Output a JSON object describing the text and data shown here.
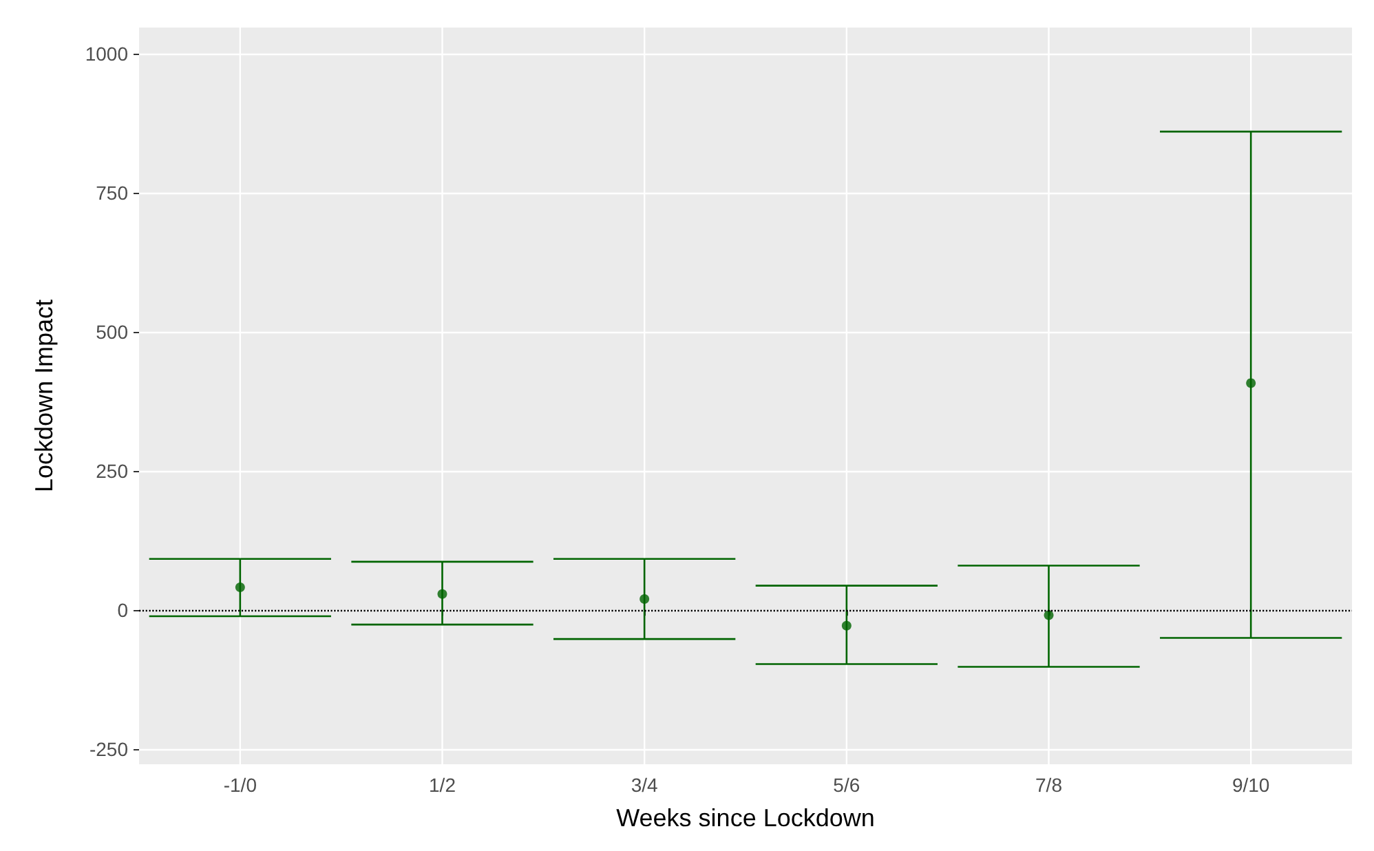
{
  "chart_data": {
    "type": "scatter",
    "xlabel": "Weeks since Lockdown",
    "ylabel": "Lockdown Impact",
    "categories": [
      "-1/0",
      "1/2",
      "3/4",
      "5/6",
      "7/8",
      "9/10"
    ],
    "values": [
      41,
      29,
      20,
      -28,
      -9,
      408
    ],
    "errors": [
      [
        -11,
        92
      ],
      [
        -26,
        87
      ],
      [
        -52,
        92
      ],
      [
        -97,
        44
      ],
      [
        -102,
        80
      ],
      [
        -50,
        860
      ]
    ],
    "color": "#006400",
    "marker": "circle",
    "ylim": [
      -277,
      1047
    ],
    "yticks": [
      -250,
      0,
      250,
      500,
      750,
      1000
    ],
    "grid": true,
    "ref_lines": [
      {
        "axis": "y",
        "value": 0,
        "color": "#000000",
        "line_style": "dotted"
      }
    ]
  }
}
